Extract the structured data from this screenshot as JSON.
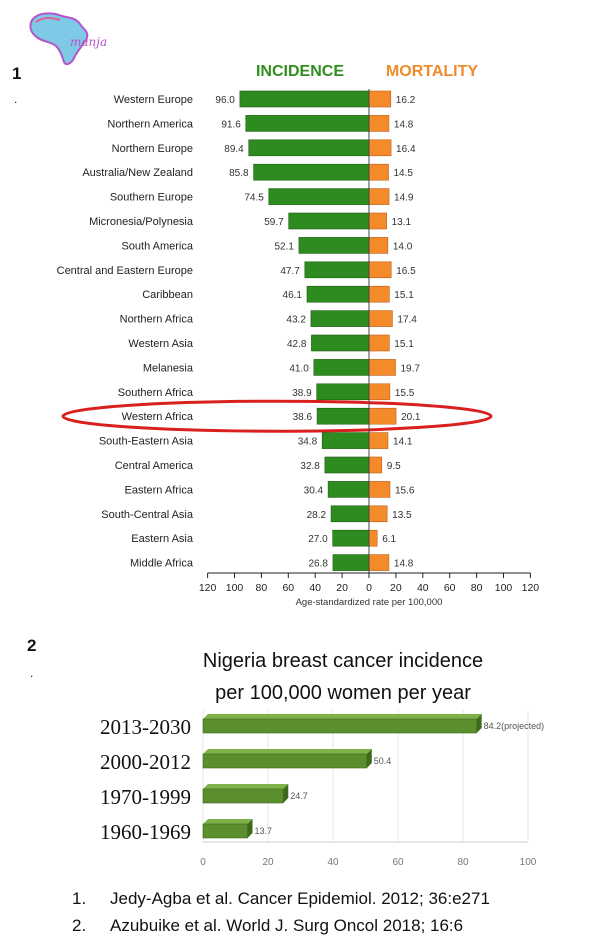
{
  "logo": {
    "text": "manja"
  },
  "section1": {
    "number": "1",
    "dot": "."
  },
  "section2": {
    "number": "2",
    "dot": "."
  },
  "chart_data": [
    {
      "type": "bar",
      "orientation": "horizontal-diverging",
      "title_left": "INCIDENCE",
      "title_right": "MORTALITY",
      "xlabel": "Age-standardized rate per 100,000",
      "xlim": [
        -120,
        120
      ],
      "xticks": [
        120,
        100,
        80,
        60,
        40,
        20,
        0,
        20,
        40,
        60,
        80,
        100,
        120
      ],
      "highlighted": "Western Africa",
      "colors": {
        "incidence": "#2e8b1f",
        "mortality": "#f58a2a",
        "highlight": "#d9201e",
        "title_incidence": "#2f8f1f",
        "title_mortality": "#f08a2a"
      },
      "categories": [
        "Western Europe",
        "Northern America",
        "Northern Europe",
        "Australia/New Zealand",
        "Southern Europe",
        "Micronesia/Polynesia",
        "South America",
        "Central and Eastern Europe",
        "Caribbean",
        "Northern Africa",
        "Western Asia",
        "Melanesia",
        "Southern Africa",
        "Western Africa",
        "South-Eastern Asia",
        "Central America",
        "Eastern Africa",
        "South-Central Asia",
        "Eastern Asia",
        "Middle Africa"
      ],
      "series": [
        {
          "name": "INCIDENCE",
          "values": [
            96.0,
            91.6,
            89.4,
            85.8,
            74.5,
            59.7,
            52.1,
            47.7,
            46.1,
            43.2,
            42.8,
            41.0,
            38.9,
            38.6,
            34.8,
            32.8,
            30.4,
            28.2,
            27.0,
            26.8
          ]
        },
        {
          "name": "MORTALITY",
          "values": [
            16.2,
            14.8,
            16.4,
            14.5,
            14.9,
            13.1,
            14.0,
            16.5,
            15.1,
            17.4,
            15.1,
            19.7,
            15.5,
            20.1,
            14.1,
            9.5,
            15.6,
            13.5,
            6.1,
            14.8
          ]
        }
      ]
    },
    {
      "type": "bar",
      "orientation": "horizontal",
      "title": [
        "Nigeria breast cancer incidence",
        "per 100,000 women per year"
      ],
      "categories": [
        "2013-2030",
        "2000-2012",
        "1970-1999",
        "1960-1969"
      ],
      "values": [
        84.2,
        50.4,
        24.7,
        13.7
      ],
      "value_labels": [
        "84.2(projected)",
        "50.4",
        "24.7",
        "13.7"
      ],
      "xlim": [
        0,
        100
      ],
      "xticks": [
        0,
        20,
        40,
        60,
        80,
        100
      ],
      "colors": {
        "bar": "#5b8e2d",
        "bar_dark": "#3f6a1b",
        "bar_top": "#7fb04a"
      }
    }
  ],
  "references": [
    {
      "num": "1.",
      "text": "Jedy-Agba et al. Cancer Epidemiol. 2012; 36:e271"
    },
    {
      "num": "2.",
      "text": "Azubuike et al. World J. Surg Oncol 2018; 16:6"
    }
  ]
}
